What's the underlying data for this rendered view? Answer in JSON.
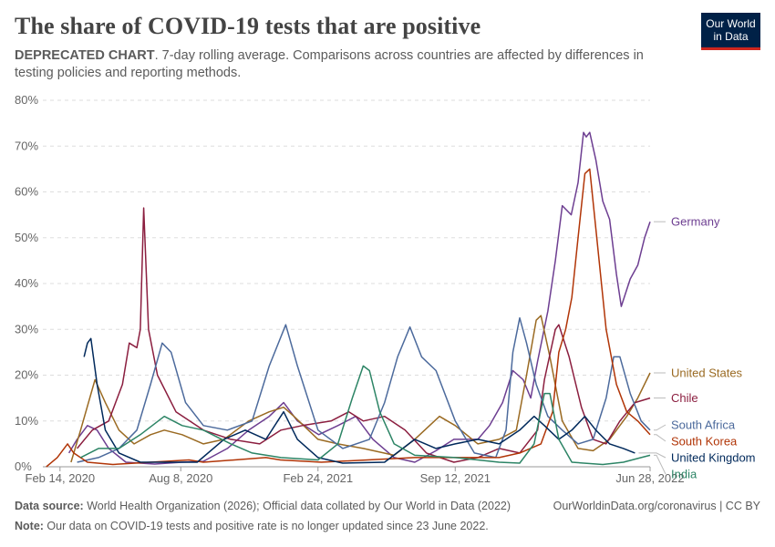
{
  "header": {
    "title": "The share of COVID-19 tests that are positive",
    "subtitle_bold": "DEPRECATED CHART",
    "subtitle_rest": ". 7-day rolling average. Comparisons across countries are affected by differences in testing policies and reporting methods."
  },
  "logo": {
    "line1": "Our World",
    "line2": "in Data",
    "bg": "#002147",
    "accent": "#ce261e"
  },
  "footer": {
    "source_label": "Data source:",
    "source_text": " World Health Organization (2026); Official data collated by Our World in Data (2022)",
    "link_text": "OurWorldinData.org/coronavirus | CC BY",
    "note_label": "Note:",
    "note_text": " Our data on COVID-19 tests and positive rate is no longer updated since 23 June 2022."
  },
  "chart_data": {
    "type": "line",
    "x_unit": "date",
    "xlim": [
      "2020-01-20",
      "2022-06-23"
    ],
    "ylim": [
      0,
      80
    ],
    "y_ticks": [
      0,
      10,
      20,
      30,
      40,
      50,
      60,
      70,
      80
    ],
    "y_tick_labels": [
      "0%",
      "10%",
      "20%",
      "30%",
      "40%",
      "50%",
      "60%",
      "70%",
      "80%"
    ],
    "x_ticks": [
      "2020-02-14",
      "2020-08-08",
      "2021-02-24",
      "2021-09-12",
      "2022-06-28"
    ],
    "x_tick_labels": [
      "Feb 14, 2020",
      "Aug 8, 2020",
      "Feb 24, 2021",
      "Sep 12, 2021",
      "Jun 28, 2022"
    ],
    "grid": "horizontal dashed",
    "legend": "right, end-of-line labels",
    "series": [
      {
        "name": "Germany",
        "color": "#6d3e91",
        "points": [
          [
            "2020-02-27",
            3
          ],
          [
            "2020-03-10",
            6
          ],
          [
            "2020-03-25",
            9
          ],
          [
            "2020-04-08",
            8
          ],
          [
            "2020-04-25",
            4
          ],
          [
            "2020-05-20",
            1
          ],
          [
            "2020-07-01",
            0.6
          ],
          [
            "2020-08-10",
            1
          ],
          [
            "2020-09-10",
            1.2
          ],
          [
            "2020-10-15",
            4
          ],
          [
            "2020-11-15",
            8
          ],
          [
            "2020-12-15",
            11
          ],
          [
            "2021-01-05",
            14
          ],
          [
            "2021-01-25",
            10
          ],
          [
            "2021-02-25",
            7
          ],
          [
            "2021-03-25",
            9
          ],
          [
            "2021-04-20",
            11
          ],
          [
            "2021-05-15",
            6
          ],
          [
            "2021-06-15",
            2
          ],
          [
            "2021-07-15",
            1
          ],
          [
            "2021-08-15",
            3.5
          ],
          [
            "2021-09-10",
            6
          ],
          [
            "2021-10-15",
            6
          ],
          [
            "2021-11-01",
            9
          ],
          [
            "2021-11-20",
            14
          ],
          [
            "2021-12-05",
            21
          ],
          [
            "2021-12-20",
            19
          ],
          [
            "2021-12-31",
            15
          ],
          [
            "2022-01-10",
            23
          ],
          [
            "2022-01-25",
            34
          ],
          [
            "2022-02-05",
            45
          ],
          [
            "2022-02-15",
            57
          ],
          [
            "2022-02-28",
            55
          ],
          [
            "2022-03-10",
            62
          ],
          [
            "2022-03-18",
            73
          ],
          [
            "2022-03-22",
            72
          ],
          [
            "2022-03-27",
            73
          ],
          [
            "2022-04-05",
            67
          ],
          [
            "2022-04-15",
            58
          ],
          [
            "2022-04-25",
            54
          ],
          [
            "2022-05-05",
            42
          ],
          [
            "2022-05-12",
            35
          ],
          [
            "2022-05-25",
            41
          ],
          [
            "2022-06-05",
            44
          ],
          [
            "2022-06-15",
            50
          ],
          [
            "2022-06-23",
            53.5
          ]
        ]
      },
      {
        "name": "United States",
        "color": "#9a6a22",
        "points": [
          [
            "2020-03-01",
            1
          ],
          [
            "2020-03-15",
            8
          ],
          [
            "2020-04-05",
            19
          ],
          [
            "2020-04-20",
            14
          ],
          [
            "2020-05-10",
            8
          ],
          [
            "2020-06-01",
            5
          ],
          [
            "2020-06-25",
            7
          ],
          [
            "2020-07-15",
            8
          ],
          [
            "2020-08-10",
            7
          ],
          [
            "2020-09-10",
            5
          ],
          [
            "2020-10-10",
            6
          ],
          [
            "2020-11-15",
            10
          ],
          [
            "2020-12-15",
            12
          ],
          [
            "2021-01-05",
            13
          ],
          [
            "2021-01-20",
            11
          ],
          [
            "2021-02-24",
            6
          ],
          [
            "2021-03-25",
            5
          ],
          [
            "2021-05-01",
            4
          ],
          [
            "2021-06-15",
            2.5
          ],
          [
            "2021-07-15",
            6
          ],
          [
            "2021-08-20",
            11
          ],
          [
            "2021-09-12",
            9
          ],
          [
            "2021-10-15",
            5
          ],
          [
            "2021-11-15",
            6
          ],
          [
            "2021-12-10",
            8
          ],
          [
            "2021-12-25",
            20
          ],
          [
            "2022-01-08",
            32
          ],
          [
            "2022-01-15",
            33
          ],
          [
            "2022-01-28",
            24
          ],
          [
            "2022-02-15",
            10
          ],
          [
            "2022-03-10",
            4
          ],
          [
            "2022-04-01",
            3.5
          ],
          [
            "2022-04-25",
            6
          ],
          [
            "2022-05-20",
            11
          ],
          [
            "2022-06-05",
            15
          ],
          [
            "2022-06-23",
            20.5
          ]
        ]
      },
      {
        "name": "Chile",
        "color": "#8b1e3f",
        "points": [
          [
            "2020-03-10",
            4
          ],
          [
            "2020-04-01",
            8
          ],
          [
            "2020-04-25",
            10
          ],
          [
            "2020-05-15",
            18
          ],
          [
            "2020-05-25",
            27
          ],
          [
            "2020-06-05",
            26
          ],
          [
            "2020-06-10",
            30
          ],
          [
            "2020-06-15",
            56.5
          ],
          [
            "2020-06-22",
            30
          ],
          [
            "2020-07-05",
            20
          ],
          [
            "2020-08-01",
            12
          ],
          [
            "2020-09-10",
            8
          ],
          [
            "2020-10-20",
            6
          ],
          [
            "2020-12-01",
            5
          ],
          [
            "2021-01-01",
            8
          ],
          [
            "2021-02-01",
            9
          ],
          [
            "2021-03-15",
            10
          ],
          [
            "2021-04-10",
            12
          ],
          [
            "2021-05-01",
            10
          ],
          [
            "2021-06-01",
            11
          ],
          [
            "2021-07-01",
            8
          ],
          [
            "2021-08-01",
            3
          ],
          [
            "2021-09-10",
            1
          ],
          [
            "2021-10-15",
            2
          ],
          [
            "2021-11-15",
            4
          ],
          [
            "2021-12-15",
            3
          ],
          [
            "2022-01-10",
            8
          ],
          [
            "2022-01-20",
            19
          ],
          [
            "2022-02-05",
            30
          ],
          [
            "2022-02-10",
            31
          ],
          [
            "2022-02-25",
            24
          ],
          [
            "2022-03-15",
            13
          ],
          [
            "2022-04-01",
            6
          ],
          [
            "2022-04-20",
            5
          ],
          [
            "2022-05-10",
            10
          ],
          [
            "2022-06-01",
            14
          ],
          [
            "2022-06-23",
            15
          ]
        ]
      },
      {
        "name": "South Africa",
        "color": "#4c6a9c",
        "points": [
          [
            "2020-03-10",
            1
          ],
          [
            "2020-04-10",
            2
          ],
          [
            "2020-05-10",
            4
          ],
          [
            "2020-06-05",
            8
          ],
          [
            "2020-06-25",
            18
          ],
          [
            "2020-07-12",
            27
          ],
          [
            "2020-07-25",
            25
          ],
          [
            "2020-08-15",
            14
          ],
          [
            "2020-09-10",
            9
          ],
          [
            "2020-10-15",
            8
          ],
          [
            "2020-11-20",
            10
          ],
          [
            "2020-12-15",
            22
          ],
          [
            "2021-01-08",
            31
          ],
          [
            "2021-01-25",
            22
          ],
          [
            "2021-02-24",
            8
          ],
          [
            "2021-04-01",
            4
          ],
          [
            "2021-05-10",
            6
          ],
          [
            "2021-06-01",
            14
          ],
          [
            "2021-06-20",
            24
          ],
          [
            "2021-07-08",
            30.5
          ],
          [
            "2021-07-25",
            24
          ],
          [
            "2021-08-15",
            21
          ],
          [
            "2021-09-12",
            10
          ],
          [
            "2021-10-10",
            3
          ],
          [
            "2021-11-10",
            2
          ],
          [
            "2021-11-25",
            8
          ],
          [
            "2021-12-05",
            25
          ],
          [
            "2021-12-15",
            32.5
          ],
          [
            "2021-12-25",
            27
          ],
          [
            "2022-01-08",
            18
          ],
          [
            "2022-01-25",
            11
          ],
          [
            "2022-02-15",
            8
          ],
          [
            "2022-03-10",
            5
          ],
          [
            "2022-04-01",
            6
          ],
          [
            "2022-04-20",
            15
          ],
          [
            "2022-05-01",
            24
          ],
          [
            "2022-05-10",
            24
          ],
          [
            "2022-05-25",
            16
          ],
          [
            "2022-06-10",
            10
          ],
          [
            "2022-06-23",
            8
          ]
        ]
      },
      {
        "name": "South Korea",
        "color": "#b13507",
        "points": [
          [
            "2020-01-25",
            0
          ],
          [
            "2020-02-10",
            2
          ],
          [
            "2020-02-25",
            5
          ],
          [
            "2020-03-05",
            3
          ],
          [
            "2020-03-25",
            1
          ],
          [
            "2020-05-01",
            0.5
          ],
          [
            "2020-08-20",
            1.5
          ],
          [
            "2020-09-10",
            1
          ],
          [
            "2020-12-10",
            2
          ],
          [
            "2020-12-31",
            1.5
          ],
          [
            "2021-03-01",
            1
          ],
          [
            "2021-07-15",
            2
          ],
          [
            "2021-09-12",
            2
          ],
          [
            "2021-11-15",
            2
          ],
          [
            "2021-12-15",
            3
          ],
          [
            "2022-01-15",
            5
          ],
          [
            "2022-02-01",
            12
          ],
          [
            "2022-02-10",
            25
          ],
          [
            "2022-02-20",
            30
          ],
          [
            "2022-03-01",
            37
          ],
          [
            "2022-03-10",
            50
          ],
          [
            "2022-03-20",
            64
          ],
          [
            "2022-03-27",
            65
          ],
          [
            "2022-04-05",
            52
          ],
          [
            "2022-04-20",
            30
          ],
          [
            "2022-05-05",
            18
          ],
          [
            "2022-05-20",
            12
          ],
          [
            "2022-06-05",
            10
          ],
          [
            "2022-06-23",
            7
          ]
        ]
      },
      {
        "name": "United Kingdom",
        "color": "#00295b",
        "points": [
          [
            "2020-03-20",
            24
          ],
          [
            "2020-03-25",
            27
          ],
          [
            "2020-03-30",
            28
          ],
          [
            "2020-04-08",
            18
          ],
          [
            "2020-04-20",
            8
          ],
          [
            "2020-05-10",
            3
          ],
          [
            "2020-06-10",
            1
          ],
          [
            "2020-09-01",
            1
          ],
          [
            "2020-10-10",
            6
          ],
          [
            "2020-11-10",
            8
          ],
          [
            "2020-12-10",
            6
          ],
          [
            "2021-01-05",
            12
          ],
          [
            "2021-01-25",
            6
          ],
          [
            "2021-02-24",
            2
          ],
          [
            "2021-04-01",
            0.8
          ],
          [
            "2021-06-01",
            1
          ],
          [
            "2021-07-15",
            6
          ],
          [
            "2021-08-15",
            4
          ],
          [
            "2021-09-12",
            5
          ],
          [
            "2021-10-15",
            6
          ],
          [
            "2021-11-15",
            5
          ],
          [
            "2021-12-15",
            8
          ],
          [
            "2022-01-05",
            11
          ],
          [
            "2022-01-20",
            9
          ],
          [
            "2022-02-10",
            6
          ],
          [
            "2022-03-01",
            8
          ],
          [
            "2022-03-20",
            11
          ],
          [
            "2022-04-05",
            8
          ],
          [
            "2022-04-25",
            5
          ],
          [
            "2022-05-15",
            4
          ],
          [
            "2022-06-01",
            3
          ]
        ]
      },
      {
        "name": "India",
        "color": "#2c8465",
        "points": [
          [
            "2020-03-15",
            2
          ],
          [
            "2020-04-10",
            4
          ],
          [
            "2020-05-10",
            4
          ],
          [
            "2020-06-10",
            7
          ],
          [
            "2020-07-15",
            11
          ],
          [
            "2020-08-10",
            9
          ],
          [
            "2020-09-10",
            8
          ],
          [
            "2020-10-20",
            5
          ],
          [
            "2020-11-20",
            3
          ],
          [
            "2021-01-01",
            2
          ],
          [
            "2021-02-24",
            1.5
          ],
          [
            "2021-03-25",
            5
          ],
          [
            "2021-04-15",
            15
          ],
          [
            "2021-05-01",
            22
          ],
          [
            "2021-05-10",
            21
          ],
          [
            "2021-05-25",
            12
          ],
          [
            "2021-06-15",
            5
          ],
          [
            "2021-07-15",
            2.5
          ],
          [
            "2021-09-12",
            2
          ],
          [
            "2021-10-15",
            1.5
          ],
          [
            "2021-11-15",
            1
          ],
          [
            "2021-12-15",
            0.8
          ],
          [
            "2022-01-05",
            5
          ],
          [
            "2022-01-20",
            16
          ],
          [
            "2022-01-28",
            16
          ],
          [
            "2022-02-10",
            6
          ],
          [
            "2022-03-01",
            1
          ],
          [
            "2022-04-15",
            0.5
          ],
          [
            "2022-05-15",
            1
          ],
          [
            "2022-06-10",
            2
          ],
          [
            "2022-06-23",
            2.5
          ]
        ]
      }
    ]
  }
}
